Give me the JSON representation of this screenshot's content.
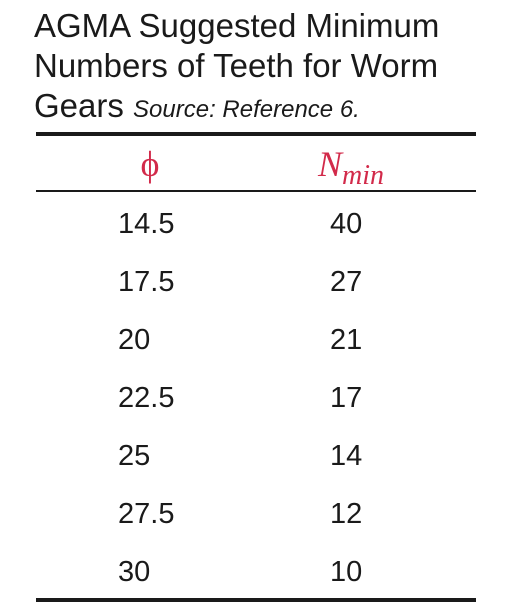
{
  "title": {
    "line1": "AGMA Suggested Minimum",
    "line2": "Numbers of Teeth for Worm",
    "line3_main": "Gears",
    "line3_source": "Source: Reference 6."
  },
  "table": {
    "headers": {
      "phi": "ϕ",
      "nmin_main": "N",
      "nmin_sub": "min"
    },
    "rows": [
      {
        "phi": "14.5",
        "nmin": "40"
      },
      {
        "phi": "17.5",
        "nmin": "27"
      },
      {
        "phi": "20",
        "nmin": "21"
      },
      {
        "phi": "22.5",
        "nmin": "17"
      },
      {
        "phi": "25",
        "nmin": "14"
      },
      {
        "phi": "27.5",
        "nmin": "12"
      },
      {
        "phi": "30",
        "nmin": "10"
      }
    ]
  },
  "colors": {
    "header_text": "#d22a4a",
    "body_text": "#1a1a1a",
    "rules": "#1a1a1a"
  }
}
